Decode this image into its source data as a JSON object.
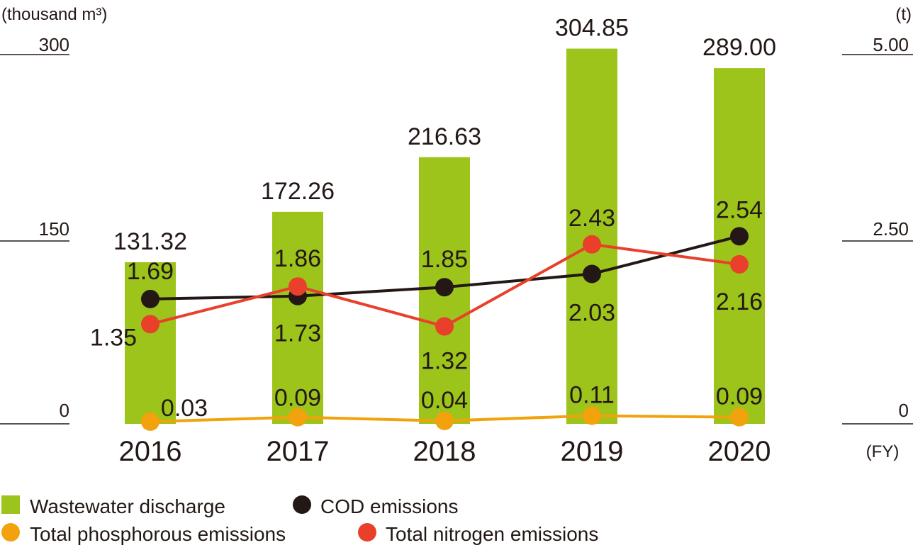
{
  "chart_data": {
    "type": "bar+line",
    "left_axis": {
      "unit": "(thousand m³)",
      "ticks": [
        "300",
        "150",
        "0"
      ],
      "tick_values": [
        300,
        150,
        0
      ],
      "ylim": [
        0,
        300
      ]
    },
    "right_axis": {
      "unit": "(t)",
      "ticks": [
        "5.00",
        "2.50",
        "0"
      ],
      "tick_values": [
        5,
        2.5,
        0
      ],
      "ylim": [
        0,
        5
      ]
    },
    "x_unit": "(FY)",
    "categories": [
      "2016",
      "2017",
      "2018",
      "2019",
      "2020"
    ],
    "bars": {
      "name": "Wastewater discharge",
      "color": "#9dc41a",
      "values": [
        131.32,
        172.26,
        216.63,
        304.85,
        289.0
      ],
      "labels": [
        "131.32",
        "172.26",
        "216.63",
        "304.85",
        "289.00"
      ]
    },
    "series": [
      {
        "name": "COD emissions",
        "color": "#231815",
        "values": [
          1.69,
          1.73,
          1.85,
          2.03,
          2.54
        ],
        "labels": [
          "1.69",
          "1.73",
          "1.85",
          "2.03",
          "2.54"
        ]
      },
      {
        "name": "Total nitrogen emissions",
        "color": "#e8402a",
        "values": [
          1.35,
          1.86,
          1.32,
          2.43,
          2.16
        ],
        "labels": [
          "1.35",
          "1.86",
          "1.32",
          "2.43",
          "2.16"
        ]
      },
      {
        "name": "Total phosphorous emissions",
        "color": "#f2a20c",
        "values": [
          0.03,
          0.09,
          0.04,
          0.11,
          0.09
        ],
        "labels": [
          "0.03",
          "0.09",
          "0.04",
          "0.11",
          "0.09"
        ]
      }
    ],
    "legend": [
      {
        "name": "Wastewater discharge",
        "shape": "square",
        "color": "#9dc41a"
      },
      {
        "name": "COD emissions",
        "shape": "circle",
        "color": "#231815"
      },
      {
        "name": "Total phosphorous emissions",
        "shape": "circle",
        "color": "#f2a20c"
      },
      {
        "name": "Total nitrogen emissions",
        "shape": "circle",
        "color": "#e8402a"
      }
    ],
    "legend_position": "bottom-left"
  }
}
